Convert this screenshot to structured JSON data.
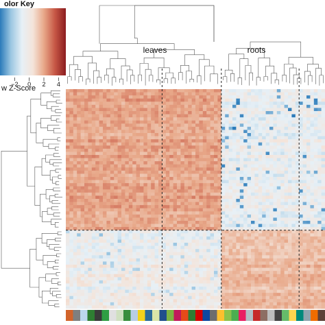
{
  "chart_data": {
    "type": "heatmap",
    "color_key": {
      "title": "olor Key",
      "scale_label": "w Z-Score",
      "ticks": [
        -2,
        0,
        2,
        4
      ],
      "range": [
        -4,
        5
      ],
      "colors": [
        "#2b7bba",
        "#9cc7e2",
        "#e7f0f6",
        "#f4e4da",
        "#e8a889",
        "#c75846",
        "#8b1c1f"
      ]
    },
    "clusters": [
      {
        "label": "leaves"
      },
      {
        "label": "roots"
      }
    ],
    "grid": {
      "rows": 70,
      "cols": 70,
      "row_split": 45,
      "col_split": 42
    },
    "dashed_columns": [
      26,
      42,
      63
    ],
    "tissue_color_bar": [
      "#d2642b",
      "#7f7f7f",
      "#bcd7ee",
      "#2e7d32",
      "#3a3a3a",
      "#2f9e44",
      "#e0e0e0",
      "#cfe0c0",
      "#388e3c",
      "#b8cde6",
      "#f2d21b",
      "#2a6b9a",
      "#d9e6a8",
      "#1f4e8c",
      "#7cb342",
      "#c2185b",
      "#e64a19",
      "#2e7d32",
      "#d50000",
      "#0d47a1",
      "#6d6d6d",
      "#fbc02d",
      "#8bc34a",
      "#4caf50",
      "#e91e63",
      "#b0bec5",
      "#c62828",
      "#8d6e63",
      "#bdbdbd",
      "#424242",
      "#66bb6a",
      "#ffd54f",
      "#00897b",
      "#90a4ae",
      "#ef6c00",
      "#5d4037"
    ],
    "value_bands": {
      "leaves_rows_leaves_cols": 2.0,
      "leaves_rows_roots_cols": -0.4,
      "roots_rows_leaves_cols": -0.2,
      "roots_rows_roots_cols": 1.5
    }
  }
}
